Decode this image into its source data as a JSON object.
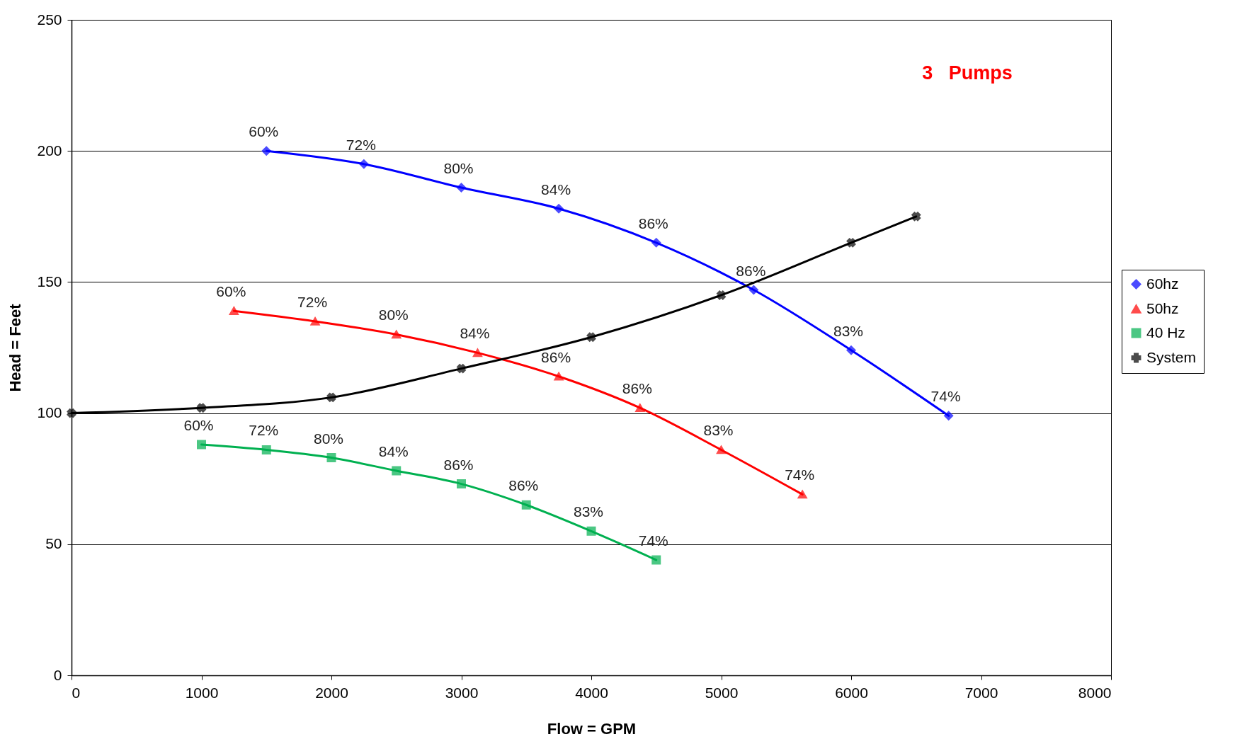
{
  "chart_data": {
    "type": "line",
    "xlabel": "Flow = GPM",
    "ylabel": "Head = Feet",
    "annotations": [
      "3   Pumps",
      {
        "text": "60%",
        "x": 1500,
        "y": 200
      },
      {
        "text": "72%",
        "x": 2250,
        "y": 195
      },
      {
        "text": "80%",
        "x": 3000,
        "y": 186
      },
      {
        "text": "84%",
        "x": 3750,
        "y": 178
      },
      {
        "text": "86%",
        "x": 4500,
        "y": 165
      },
      {
        "text": "86%",
        "x": 5250,
        "y": 147
      },
      {
        "text": "83%",
        "x": 6000,
        "y": 124
      },
      {
        "text": "74%",
        "x": 6750,
        "y": 99
      },
      {
        "text": "60%",
        "x": 1250,
        "y": 139
      },
      {
        "text": "72%",
        "x": 1875,
        "y": 135
      },
      {
        "text": "80%",
        "x": 2500,
        "y": 130
      },
      {
        "text": "84%",
        "x": 3125,
        "y": 123
      },
      {
        "text": "86%",
        "x": 3750,
        "y": 114
      },
      {
        "text": "86%",
        "x": 4375,
        "y": 102
      },
      {
        "text": "83%",
        "x": 5000,
        "y": 86
      },
      {
        "text": "74%",
        "x": 5625,
        "y": 69
      },
      {
        "text": "60%",
        "x": 1000,
        "y": 88
      },
      {
        "text": "72%",
        "x": 1500,
        "y": 86
      },
      {
        "text": "80%",
        "x": 2000,
        "y": 83
      },
      {
        "text": "84%",
        "x": 2500,
        "y": 78
      },
      {
        "text": "86%",
        "x": 3000,
        "y": 73
      },
      {
        "text": "86%",
        "x": 3500,
        "y": 65
      },
      {
        "text": "83%",
        "x": 4000,
        "y": 55
      },
      {
        "text": "74%",
        "x": 4500,
        "y": 44
      }
    ],
    "xlim": [
      0,
      8000
    ],
    "xticks": [
      0,
      1000,
      2000,
      3000,
      4000,
      5000,
      6000,
      7000,
      8000
    ],
    "ylim": [
      0,
      250
    ],
    "yticks": [
      0,
      50,
      100,
      150,
      200,
      250
    ],
    "grid": "y",
    "legend": "right",
    "series": [
      {
        "name": "60hz",
        "color": "#0000ff",
        "marker": "diamond",
        "x": [
          1500,
          2250,
          3000,
          3750,
          4500,
          5250,
          6000,
          6750
        ],
        "values": [
          200,
          195,
          186,
          178,
          165,
          147,
          124,
          99
        ]
      },
      {
        "name": "50hz",
        "color": "#ff0000",
        "marker": "triangle",
        "x": [
          1250,
          1875,
          2500,
          3125,
          3750,
          4375,
          5000,
          5625
        ],
        "values": [
          139,
          135,
          130,
          123,
          114,
          102,
          86,
          69
        ]
      },
      {
        "name": "40 Hz",
        "color": "#00b050",
        "marker": "square",
        "x": [
          1000,
          1500,
          2000,
          2500,
          3000,
          3500,
          4000,
          4500
        ],
        "values": [
          88,
          86,
          83,
          78,
          73,
          65,
          55,
          44
        ]
      },
      {
        "name": "System",
        "color": "#000000",
        "marker": "cross",
        "x": [
          0,
          1000,
          2000,
          3000,
          4000,
          5000,
          6000,
          6500
        ],
        "values": [
          100,
          102,
          106,
          117,
          129,
          145,
          165,
          175
        ]
      }
    ]
  }
}
